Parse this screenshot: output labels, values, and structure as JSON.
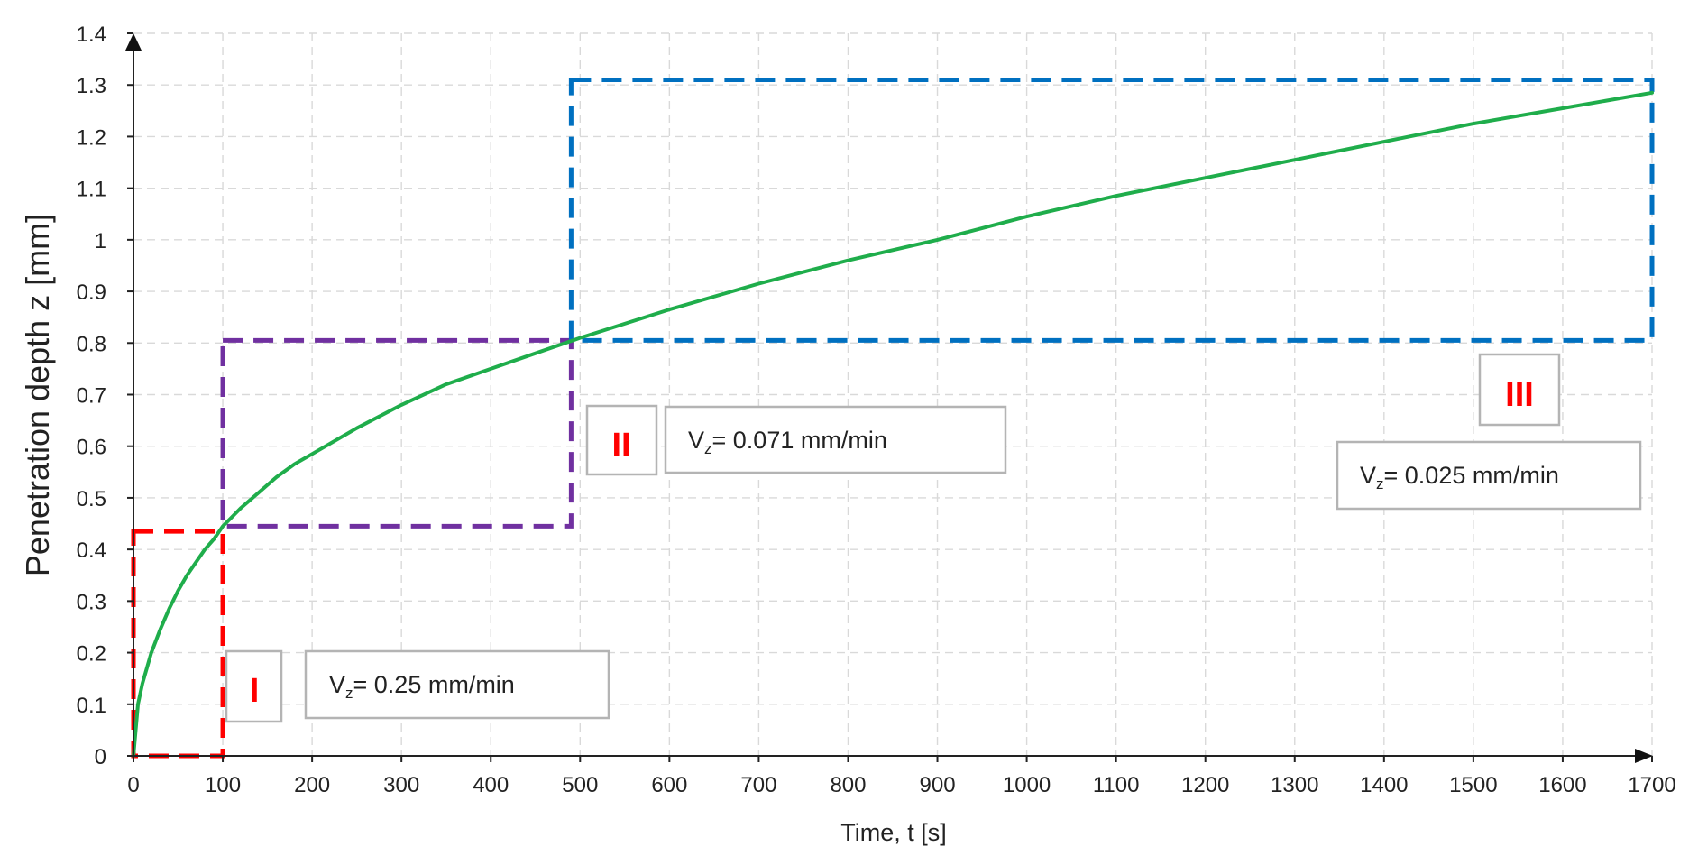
{
  "chart_data": {
    "type": "line",
    "title": "",
    "xlabel": "Time, t [s]",
    "ylabel": "Penetration depth z [mm]",
    "xlim": [
      0,
      1700
    ],
    "ylim": [
      0,
      1.4
    ],
    "x_ticks": [
      "0",
      "100",
      "200",
      "300",
      "400",
      "500",
      "600",
      "700",
      "800",
      "900",
      "1000",
      "1100",
      "1200",
      "1300",
      "1400",
      "1500",
      "1600",
      "1700"
    ],
    "y_ticks": [
      "0",
      "0.1",
      "0.2",
      "0.3",
      "0.4",
      "0.5",
      "0.6",
      "0.7",
      "0.8",
      "0.9",
      "1",
      "1.1",
      "1.2",
      "1.3",
      "1.4"
    ],
    "grid": true,
    "series": [
      {
        "name": "Penetration depth",
        "color": "#1fad4b",
        "x": [
          0,
          5,
          10,
          20,
          30,
          40,
          50,
          60,
          70,
          80,
          90,
          100,
          120,
          140,
          160,
          180,
          200,
          250,
          300,
          350,
          400,
          450,
          500,
          600,
          700,
          800,
          900,
          1000,
          1100,
          1200,
          1300,
          1400,
          1500,
          1600,
          1700
        ],
        "y": [
          0,
          0.1,
          0.14,
          0.2,
          0.245,
          0.285,
          0.32,
          0.35,
          0.375,
          0.4,
          0.42,
          0.445,
          0.48,
          0.51,
          0.54,
          0.565,
          0.585,
          0.635,
          0.68,
          0.72,
          0.75,
          0.78,
          0.81,
          0.865,
          0.915,
          0.96,
          1.0,
          1.045,
          1.085,
          1.12,
          1.155,
          1.19,
          1.225,
          1.255,
          1.285
        ]
      }
    ],
    "regions": [
      {
        "roman": "I",
        "color": "#ff0000",
        "x": [
          0,
          100
        ],
        "y": [
          0,
          0.435
        ],
        "vz_main": "V",
        "vz_sub": "z",
        "vz_value": "= 0.25 mm/min"
      },
      {
        "roman": "II",
        "color": "#7030a0",
        "x": [
          100,
          490
        ],
        "y": [
          0.445,
          0.805
        ],
        "vz_main": "V",
        "vz_sub": "z",
        "vz_value": "= 0.071 mm/min"
      },
      {
        "roman": "III",
        "color": "#0070c0",
        "x": [
          490,
          1700
        ],
        "y": [
          0.805,
          1.31
        ],
        "vz_main": "V",
        "vz_sub": "z",
        "vz_value": "= 0.025 mm/min"
      }
    ]
  }
}
